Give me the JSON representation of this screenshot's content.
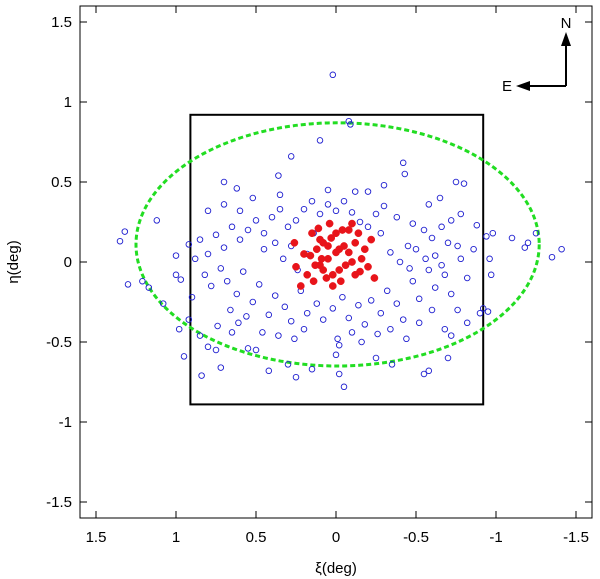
{
  "chart_data": {
    "type": "scatter",
    "title": "",
    "xlabel": "ξ(deg)",
    "ylabel": "η(deg)",
    "xlim": [
      1.6,
      -1.6
    ],
    "ylim": [
      -1.6,
      1.6
    ],
    "x_ticks": [
      1.5,
      1,
      0.5,
      0,
      -0.5,
      -1,
      -1.5
    ],
    "y_ticks": [
      -1.5,
      -1,
      -0.5,
      0,
      0.5,
      1,
      1.5
    ],
    "x_tick_labels": [
      "1.5",
      "1",
      "0.5",
      "0",
      "-0.5",
      "-1",
      "-1.5"
    ],
    "y_tick_labels": [
      "-1.5",
      "-1",
      "-0.5",
      "0",
      "0.5",
      "1",
      "1.5"
    ],
    "grid": false,
    "compass": {
      "north": "N",
      "east": "E"
    },
    "colors": {
      "open": "#1f1fd0",
      "filled": "#e8141a",
      "ellipse": "#22dd22",
      "frame": "#000000"
    },
    "field_box": {
      "x": [
        0.91,
        -0.92
      ],
      "y": [
        -0.89,
        0.92
      ]
    },
    "ellipse": {
      "center": [
        -0.01,
        0.11
      ],
      "semi_axis_x": 1.26,
      "semi_axis_y": 0.76
    },
    "series": [
      {
        "marker": "open-circle",
        "points": [
          [
            0.02,
            1.17
          ],
          [
            -0.08,
            0.88
          ],
          [
            -0.09,
            0.86
          ],
          [
            0.1,
            0.76
          ],
          [
            0.28,
            0.66
          ],
          [
            -0.42,
            0.62
          ],
          [
            -0.75,
            0.5
          ],
          [
            -0.8,
            0.49
          ],
          [
            0.7,
            0.5
          ],
          [
            0.62,
            0.46
          ],
          [
            0.05,
            0.45
          ],
          [
            -0.12,
            0.44
          ],
          [
            -0.43,
            0.55
          ],
          [
            0.36,
            0.54
          ],
          [
            1.32,
            0.19
          ],
          [
            1.35,
            0.13
          ],
          [
            1.3,
            -0.14
          ],
          [
            1.21,
            -0.12
          ],
          [
            1.17,
            -0.16
          ],
          [
            1.08,
            -0.26
          ],
          [
            1.12,
            0.26
          ],
          [
            1.0,
            0.04
          ],
          [
            1.0,
            -0.08
          ],
          [
            0.97,
            -0.11
          ],
          [
            0.98,
            -0.42
          ],
          [
            0.95,
            -0.59
          ],
          [
            0.92,
            0.11
          ],
          [
            0.85,
            -0.46
          ],
          [
            0.8,
            -0.53
          ],
          [
            0.75,
            -0.55
          ],
          [
            0.84,
            -0.71
          ],
          [
            0.72,
            -0.66
          ],
          [
            0.65,
            -0.44
          ],
          [
            0.61,
            -0.38
          ],
          [
            0.55,
            -0.54
          ],
          [
            0.5,
            -0.55
          ],
          [
            0.42,
            -0.68
          ],
          [
            0.3,
            -0.64
          ],
          [
            0.25,
            -0.72
          ],
          [
            0.15,
            -0.67
          ],
          [
            -0.01,
            -0.48
          ],
          [
            -0.02,
            -0.52
          ],
          [
            0.0,
            -0.58
          ],
          [
            -0.02,
            -0.7
          ],
          [
            -0.05,
            -0.78
          ],
          [
            -0.25,
            -0.6
          ],
          [
            -0.35,
            -0.64
          ],
          [
            -0.55,
            -0.7
          ],
          [
            -0.58,
            -0.68
          ],
          [
            -0.68,
            -0.42
          ],
          [
            -0.72,
            -0.46
          ],
          [
            -0.7,
            -0.6
          ],
          [
            -0.9,
            -0.32
          ],
          [
            -0.92,
            -0.29
          ],
          [
            -0.95,
            -0.31
          ],
          [
            -0.97,
            -0.08
          ],
          [
            -0.94,
            0.16
          ],
          [
            -0.98,
            0.18
          ],
          [
            -1.1,
            0.15
          ],
          [
            -1.18,
            0.09
          ],
          [
            -1.2,
            0.12
          ],
          [
            -1.25,
            0.18
          ],
          [
            -1.35,
            0.03
          ],
          [
            -1.41,
            0.08
          ],
          [
            -0.96,
            0.02
          ],
          [
            -0.88,
            0.23
          ],
          [
            -0.78,
            0.3
          ],
          [
            -0.72,
            0.26
          ],
          [
            -0.66,
            0.22
          ],
          [
            -0.6,
            0.15
          ],
          [
            -0.55,
            0.2
          ],
          [
            -0.48,
            0.24
          ],
          [
            -0.45,
            0.1
          ],
          [
            -0.38,
            0.28
          ],
          [
            -0.3,
            0.35
          ],
          [
            -0.25,
            0.3
          ],
          [
            -0.2,
            0.22
          ],
          [
            -0.15,
            0.25
          ],
          [
            -0.1,
            0.31
          ],
          [
            -0.05,
            0.38
          ],
          [
            0.0,
            0.32
          ],
          [
            0.05,
            0.36
          ],
          [
            0.1,
            0.3
          ],
          [
            0.15,
            0.38
          ],
          [
            0.2,
            0.33
          ],
          [
            0.25,
            0.26
          ],
          [
            0.3,
            0.22
          ],
          [
            0.35,
            0.33
          ],
          [
            0.4,
            0.28
          ],
          [
            0.45,
            0.18
          ],
          [
            0.5,
            0.26
          ],
          [
            0.55,
            0.2
          ],
          [
            0.6,
            0.14
          ],
          [
            0.65,
            0.22
          ],
          [
            0.7,
            0.09
          ],
          [
            0.75,
            0.17
          ],
          [
            0.8,
            0.05
          ],
          [
            0.85,
            0.14
          ],
          [
            0.88,
            0.02
          ],
          [
            0.82,
            -0.08
          ],
          [
            0.78,
            -0.15
          ],
          [
            0.72,
            -0.04
          ],
          [
            0.68,
            -0.12
          ],
          [
            0.62,
            -0.2
          ],
          [
            0.58,
            -0.06
          ],
          [
            0.52,
            -0.25
          ],
          [
            0.48,
            -0.14
          ],
          [
            0.42,
            -0.33
          ],
          [
            0.38,
            -0.21
          ],
          [
            0.32,
            -0.28
          ],
          [
            0.28,
            -0.37
          ],
          [
            0.22,
            -0.18
          ],
          [
            0.18,
            -0.32
          ],
          [
            0.12,
            -0.26
          ],
          [
            0.08,
            -0.36
          ],
          [
            0.02,
            -0.29
          ],
          [
            -0.04,
            -0.22
          ],
          [
            -0.08,
            -0.35
          ],
          [
            -0.14,
            -0.27
          ],
          [
            -0.18,
            -0.39
          ],
          [
            -0.22,
            -0.24
          ],
          [
            -0.28,
            -0.32
          ],
          [
            -0.32,
            -0.18
          ],
          [
            -0.38,
            -0.26
          ],
          [
            -0.42,
            -0.36
          ],
          [
            -0.48,
            -0.12
          ],
          [
            -0.52,
            -0.23
          ],
          [
            -0.58,
            -0.05
          ],
          [
            -0.62,
            -0.16
          ],
          [
            -0.68,
            -0.08
          ],
          [
            -0.72,
            -0.2
          ],
          [
            -0.78,
            0.02
          ],
          [
            -0.82,
            -0.1
          ],
          [
            -0.86,
            0.08
          ],
          [
            0.6,
            0.32
          ],
          [
            0.52,
            0.4
          ],
          [
            0.45,
            0.08
          ],
          [
            0.38,
            0.12
          ],
          [
            0.33,
            0.02
          ],
          [
            0.28,
            0.1
          ],
          [
            0.24,
            -0.05
          ],
          [
            0.18,
            0.05
          ],
          [
            0.14,
            0.18
          ],
          [
            -0.28,
            0.18
          ],
          [
            -0.34,
            0.06
          ],
          [
            -0.4,
            0.0
          ],
          [
            -0.46,
            -0.04
          ],
          [
            -0.5,
            0.08
          ],
          [
            -0.56,
            0.02
          ],
          [
            -0.62,
            0.04
          ],
          [
            -0.66,
            -0.02
          ],
          [
            -0.7,
            0.12
          ],
          [
            -0.76,
            0.1
          ],
          [
            0.66,
            -0.3
          ],
          [
            0.56,
            -0.34
          ],
          [
            0.46,
            -0.44
          ],
          [
            0.36,
            -0.46
          ],
          [
            0.26,
            -0.48
          ],
          [
            0.2,
            -0.42
          ],
          [
            -0.1,
            -0.44
          ],
          [
            -0.16,
            -0.5
          ],
          [
            -0.26,
            -0.45
          ],
          [
            -0.34,
            -0.42
          ],
          [
            -0.44,
            -0.48
          ],
          [
            -0.52,
            -0.38
          ],
          [
            -0.6,
            -0.3
          ],
          [
            -0.76,
            -0.3
          ],
          [
            -0.82,
            -0.38
          ],
          [
            0.9,
            -0.22
          ],
          [
            0.92,
            -0.36
          ],
          [
            0.74,
            -0.4
          ],
          [
            0.7,
            0.36
          ],
          [
            0.8,
            0.32
          ],
          [
            0.35,
            0.42
          ],
          [
            -0.2,
            0.44
          ],
          [
            -0.3,
            0.48
          ],
          [
            -0.58,
            0.36
          ],
          [
            -0.65,
            0.4
          ]
        ]
      },
      {
        "marker": "filled-circle",
        "points": [
          [
            0.15,
            0.18
          ],
          [
            0.12,
            0.08
          ],
          [
            0.1,
            -0.02
          ],
          [
            0.08,
            0.12
          ],
          [
            0.05,
            0.02
          ],
          [
            0.03,
            0.15
          ],
          [
            0.0,
            0.06
          ],
          [
            -0.02,
            -0.05
          ],
          [
            -0.05,
            0.1
          ],
          [
            -0.08,
            0.2
          ],
          [
            -0.1,
            0.0
          ],
          [
            -0.12,
            0.12
          ],
          [
            -0.15,
            -0.06
          ],
          [
            -0.18,
            0.08
          ],
          [
            -0.2,
            -0.03
          ],
          [
            -0.22,
            0.14
          ],
          [
            0.18,
            -0.08
          ],
          [
            0.2,
            0.05
          ],
          [
            0.22,
            -0.15
          ],
          [
            0.25,
            -0.03
          ],
          [
            0.14,
            -0.12
          ],
          [
            0.06,
            -0.1
          ],
          [
            -0.03,
            -0.12
          ],
          [
            -0.06,
            -0.02
          ],
          [
            0.0,
            0.18
          ],
          [
            0.04,
            0.24
          ],
          [
            -0.04,
            0.2
          ],
          [
            0.08,
            -0.05
          ],
          [
            0.11,
            0.21
          ],
          [
            -0.14,
            0.18
          ],
          [
            -0.16,
            0.02
          ],
          [
            0.02,
            -0.08
          ],
          [
            0.05,
            0.1
          ],
          [
            -0.02,
            0.08
          ],
          [
            0.16,
            0.04
          ],
          [
            -0.08,
            0.06
          ],
          [
            0.1,
            0.14
          ],
          [
            -0.12,
            -0.08
          ],
          [
            0.13,
            -0.02
          ],
          [
            -0.24,
            -0.1
          ],
          [
            0.26,
            0.12
          ],
          [
            0.02,
            -0.15
          ],
          [
            -0.1,
            0.24
          ],
          [
            0.09,
            0.02
          ]
        ]
      }
    ]
  }
}
